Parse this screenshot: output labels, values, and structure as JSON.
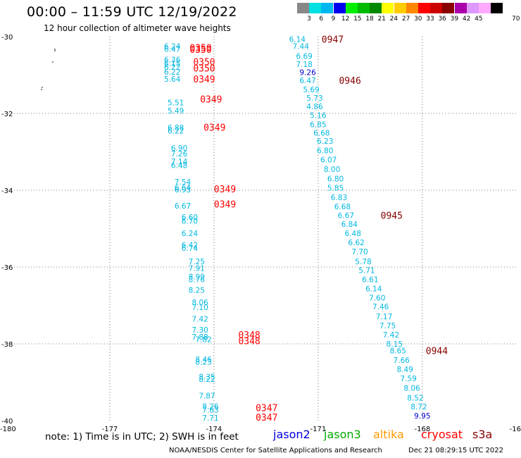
{
  "title": "00:00 – 11:59 UTC 12/19/2022",
  "subtitle": "12 hour collection of altimeter wave heights",
  "legend": {
    "unit": "70 (ft)",
    "bins": [
      {
        "label": "3",
        "color": "#888888"
      },
      {
        "label": "6",
        "color": "#00e0e0"
      },
      {
        "label": "9",
        "color": "#00b8f0"
      },
      {
        "label": "12",
        "color": "#0000ee"
      },
      {
        "label": "15",
        "color": "#00ee00"
      },
      {
        "label": "18",
        "color": "#00bb00"
      },
      {
        "label": "21",
        "color": "#008800"
      },
      {
        "label": "24",
        "color": "#ffff00"
      },
      {
        "label": "27",
        "color": "#ffcc00"
      },
      {
        "label": "30",
        "color": "#ff8800"
      },
      {
        "label": "33",
        "color": "#ff0000"
      },
      {
        "label": "36",
        "color": "#cc0000"
      },
      {
        "label": "39",
        "color": "#880000"
      },
      {
        "label": "42",
        "color": "#aa00aa"
      },
      {
        "label": "45",
        "color": "#dd99ff"
      },
      {
        "label": "",
        "color": "#ffaaff"
      },
      {
        "label": "",
        "color": "#000000"
      }
    ]
  },
  "axes": {
    "lon_labels": [
      "-180",
      "-177",
      "-174",
      "-171",
      "-168",
      "-16"
    ],
    "lat_labels": [
      "-30",
      "-32",
      "-34",
      "-36",
      "-38",
      "-40"
    ],
    "lon_grid": [
      -177,
      -174,
      -171,
      -168
    ],
    "lat_grid": [
      -32,
      -34,
      -36,
      -38
    ],
    "lon_range": [
      -180,
      -165.3
    ],
    "lat_range": [
      -30,
      -40
    ]
  },
  "colors": {
    "cyan": "#00b8e0",
    "blue": "#0000cc",
    "red": "#ff0000",
    "darkred": "#880000"
  },
  "tracks": [
    {
      "name": "cryosat",
      "values": [
        {
          "lon": -175.2,
          "lat": -30.25,
          "v": "6.24"
        },
        {
          "lon": -175.2,
          "lat": -30.32,
          "v": "6.47"
        },
        {
          "lon": -175.2,
          "lat": -30.6,
          "v": "6.36"
        },
        {
          "lon": -175.2,
          "lat": -30.7,
          "v": "6.15"
        },
        {
          "lon": -175.2,
          "lat": -30.79,
          "v": "6.22"
        },
        {
          "lon": -175.2,
          "lat": -30.92,
          "v": "6.22"
        },
        {
          "lon": -175.2,
          "lat": -31.1,
          "v": "5.64"
        },
        {
          "lon": -175.1,
          "lat": -31.72,
          "v": "5.51"
        },
        {
          "lon": -175.1,
          "lat": -31.93,
          "v": "5.49"
        },
        {
          "lon": -175.1,
          "lat": -32.37,
          "v": "6.88"
        },
        {
          "lon": -175.1,
          "lat": -32.45,
          "v": "6.22"
        },
        {
          "lon": -175.0,
          "lat": -32.9,
          "v": "6.90"
        },
        {
          "lon": -175.0,
          "lat": -33.05,
          "v": "7.26"
        },
        {
          "lon": -175.0,
          "lat": -33.25,
          "v": "7.14"
        },
        {
          "lon": -175.0,
          "lat": -33.35,
          "v": "6.48"
        },
        {
          "lon": -174.9,
          "lat": -33.78,
          "v": "7.54"
        },
        {
          "lon": -174.9,
          "lat": -33.93,
          "v": "6.64"
        },
        {
          "lon": -174.9,
          "lat": -33.98,
          "v": "6.93"
        },
        {
          "lon": -174.9,
          "lat": -34.4,
          "v": "6.67"
        },
        {
          "lon": -174.7,
          "lat": -34.7,
          "v": "6.60"
        },
        {
          "lon": -174.7,
          "lat": -34.8,
          "v": "6.70"
        },
        {
          "lon": -174.7,
          "lat": -35.12,
          "v": "6.24"
        },
        {
          "lon": -174.7,
          "lat": -35.42,
          "v": "6.42"
        },
        {
          "lon": -174.7,
          "lat": -35.5,
          "v": "6.74"
        },
        {
          "lon": -174.5,
          "lat": -35.85,
          "v": "7.25"
        },
        {
          "lon": -174.5,
          "lat": -36.03,
          "v": "7.91"
        },
        {
          "lon": -174.5,
          "lat": -36.25,
          "v": "8.99"
        },
        {
          "lon": -174.5,
          "lat": -36.32,
          "v": "8.76"
        },
        {
          "lon": -174.5,
          "lat": -36.6,
          "v": "8.25"
        },
        {
          "lon": -174.4,
          "lat": -36.92,
          "v": "8.06"
        },
        {
          "lon": -174.4,
          "lat": -37.05,
          "v": "7.10"
        },
        {
          "lon": -174.4,
          "lat": -37.35,
          "v": "7.42"
        },
        {
          "lon": -174.4,
          "lat": -37.63,
          "v": "7.30"
        },
        {
          "lon": -174.4,
          "lat": -37.82,
          "v": "7.88"
        },
        {
          "lon": -174.3,
          "lat": -37.88,
          "v": "7.82"
        },
        {
          "lon": -174.3,
          "lat": -38.4,
          "v": "8.46"
        },
        {
          "lon": -174.3,
          "lat": -38.47,
          "v": "8.23"
        },
        {
          "lon": -174.2,
          "lat": -38.85,
          "v": "8.35"
        },
        {
          "lon": -174.2,
          "lat": -38.92,
          "v": "8.22"
        },
        {
          "lon": -174.2,
          "lat": -39.35,
          "v": "7.87"
        },
        {
          "lon": -174.1,
          "lat": -39.62,
          "v": "8.26"
        },
        {
          "lon": -174.1,
          "lat": -39.72,
          "v": "7.63"
        },
        {
          "lon": -174.1,
          "lat": -39.93,
          "v": "7.71"
        }
      ],
      "times": [
        {
          "lon": -174.7,
          "lat": -30.28,
          "t": "0350"
        },
        {
          "lon": -174.7,
          "lat": -30.33,
          "t": "0350"
        },
        {
          "lon": -174.6,
          "lat": -30.65,
          "t": "0350"
        },
        {
          "lon": -174.6,
          "lat": -30.82,
          "t": "0350"
        },
        {
          "lon": -174.6,
          "lat": -31.1,
          "t": "0349"
        },
        {
          "lon": -174.4,
          "lat": -31.62,
          "t": "0349"
        },
        {
          "lon": -174.3,
          "lat": -32.36,
          "t": "0349"
        },
        {
          "lon": -174.0,
          "lat": -33.96,
          "t": "0349"
        },
        {
          "lon": -174.0,
          "lat": -34.36,
          "t": "0349"
        },
        {
          "lon": -173.3,
          "lat": -37.76,
          "t": "0348"
        },
        {
          "lon": -173.3,
          "lat": -37.92,
          "t": "0348"
        },
        {
          "lon": -172.8,
          "lat": -39.66,
          "t": "0347"
        },
        {
          "lon": -172.8,
          "lat": -39.91,
          "t": "0347"
        }
      ]
    },
    {
      "name": "s3a",
      "values": [
        {
          "lon": -171.6,
          "lat": -30.06,
          "v": "6.14"
        },
        {
          "lon": -171.5,
          "lat": -30.25,
          "v": "7.44"
        },
        {
          "lon": -171.4,
          "lat": -30.5,
          "v": "6.69"
        },
        {
          "lon": -171.4,
          "lat": -30.72,
          "v": "7.18"
        },
        {
          "lon": -171.3,
          "lat": -30.93,
          "v": "9.26",
          "hi": true
        },
        {
          "lon": -171.3,
          "lat": -31.14,
          "v": "6.47"
        },
        {
          "lon": -171.2,
          "lat": -31.38,
          "v": "5.69"
        },
        {
          "lon": -171.1,
          "lat": -31.6,
          "v": "5.73"
        },
        {
          "lon": -171.1,
          "lat": -31.82,
          "v": "4.86"
        },
        {
          "lon": -171.0,
          "lat": -32.05,
          "v": "5.16"
        },
        {
          "lon": -171.0,
          "lat": -32.28,
          "v": "6.85"
        },
        {
          "lon": -170.9,
          "lat": -32.5,
          "v": "6.68"
        },
        {
          "lon": -170.8,
          "lat": -32.72,
          "v": "6.23"
        },
        {
          "lon": -170.8,
          "lat": -32.96,
          "v": "6.80"
        },
        {
          "lon": -170.7,
          "lat": -33.2,
          "v": "6.07"
        },
        {
          "lon": -170.6,
          "lat": -33.45,
          "v": "8.00"
        },
        {
          "lon": -170.5,
          "lat": -33.7,
          "v": "6.80"
        },
        {
          "lon": -170.5,
          "lat": -33.94,
          "v": "5.85"
        },
        {
          "lon": -170.4,
          "lat": -34.18,
          "v": "6.83"
        },
        {
          "lon": -170.3,
          "lat": -34.42,
          "v": "6.68"
        },
        {
          "lon": -170.2,
          "lat": -34.65,
          "v": "6.67"
        },
        {
          "lon": -170.1,
          "lat": -34.88,
          "v": "6.84"
        },
        {
          "lon": -170.0,
          "lat": -35.12,
          "v": "6.48"
        },
        {
          "lon": -169.9,
          "lat": -35.36,
          "v": "6.62"
        },
        {
          "lon": -169.8,
          "lat": -35.6,
          "v": "7.70"
        },
        {
          "lon": -169.7,
          "lat": -35.85,
          "v": "5.78"
        },
        {
          "lon": -169.6,
          "lat": -36.08,
          "v": "5.71"
        },
        {
          "lon": -169.5,
          "lat": -36.32,
          "v": "6.61"
        },
        {
          "lon": -169.4,
          "lat": -36.56,
          "v": "6.14"
        },
        {
          "lon": -169.3,
          "lat": -36.8,
          "v": "7.60"
        },
        {
          "lon": -169.2,
          "lat": -37.03,
          "v": "7.46"
        },
        {
          "lon": -169.1,
          "lat": -37.28,
          "v": "7.17"
        },
        {
          "lon": -169.0,
          "lat": -37.52,
          "v": "7.75"
        },
        {
          "lon": -168.9,
          "lat": -37.76,
          "v": "7.42"
        },
        {
          "lon": -168.8,
          "lat": -38.0,
          "v": "8.15"
        },
        {
          "lon": -168.7,
          "lat": -38.17,
          "v": "8.65"
        },
        {
          "lon": -168.6,
          "lat": -38.42,
          "v": "7.66"
        },
        {
          "lon": -168.5,
          "lat": -38.66,
          "v": "8.49"
        },
        {
          "lon": -168.4,
          "lat": -38.9,
          "v": "7.59"
        },
        {
          "lon": -168.3,
          "lat": -39.15,
          "v": "8.06"
        },
        {
          "lon": -168.2,
          "lat": -39.4,
          "v": "8.52"
        },
        {
          "lon": -168.1,
          "lat": -39.63,
          "v": "8.72"
        },
        {
          "lon": -168.0,
          "lat": -39.87,
          "v": "9.95",
          "hi": true
        }
      ],
      "times": [
        {
          "lon": -170.9,
          "lat": -30.06,
          "t": "0947"
        },
        {
          "lon": -170.4,
          "lat": -31.14,
          "t": "0946"
        },
        {
          "lon": -169.2,
          "lat": -34.65,
          "t": "0945"
        },
        {
          "lon": -167.9,
          "lat": -38.17,
          "t": "0944"
        }
      ]
    }
  ],
  "footer": {
    "note": "note: 1) Time is in UTC; 2) SWH is in feet",
    "satellites": [
      {
        "label": "jason2",
        "color": "#0000dd"
      },
      {
        "label": "jason3",
        "color": "#00aa00"
      },
      {
        "label": "altika",
        "color": "#ff9900"
      },
      {
        "label": "cryosat",
        "color": "#ff0000"
      },
      {
        "label": "s3a",
        "color": "#880000"
      }
    ],
    "credit": "NOAA/NESDIS Center for Satellite Applications and Research",
    "timestamp": "Dec 21 08:29:15 UTC 2022"
  }
}
